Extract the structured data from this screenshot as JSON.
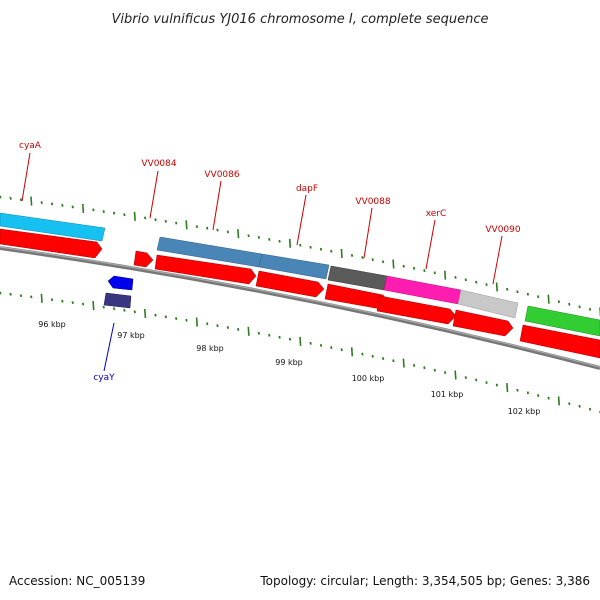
{
  "title": "Vibrio vulnificus YJ016 chromosome I, complete sequence",
  "footer": {
    "accession": "Accession: NC_005139",
    "summary": "Topology: circular; Length: 3,354,505 bp; Genes: 3,386"
  },
  "colors": {
    "gene_label": "#cc0000",
    "cyaY_label": "#0000cc",
    "tick": "#2e7d1e",
    "backbone": "#808080",
    "cds_red": "#ff0000",
    "cyan_feature": "#16c0f0",
    "steelblue_feature": "#4a85b8",
    "grey_feature": "#5a5a5a",
    "magenta_feature": "#ff1cb0",
    "lightgrey_feature": "#c8c8c8",
    "green_feature": "#32cd32",
    "blue_small": "#0000ee",
    "navy_small": "#3a3580"
  },
  "kbp_labels": [
    "96 kbp",
    "97 kbp",
    "98 kbp",
    "99 kbp",
    "100 kbp",
    "101 kbp",
    "102 kbp"
  ],
  "genes": [
    {
      "label": "cyaA"
    },
    {
      "label": "VV0084"
    },
    {
      "label": "VV0086"
    },
    {
      "label": "dapF"
    },
    {
      "label": "VV0088"
    },
    {
      "label": "xerC"
    },
    {
      "label": "VV0090"
    },
    {
      "label": "cyaY"
    }
  ]
}
